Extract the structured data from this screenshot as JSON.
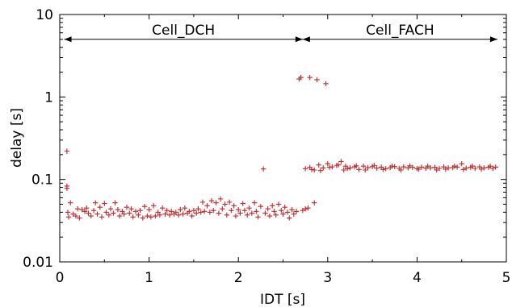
{
  "chart_data": {
    "type": "scatter",
    "title": "",
    "xlabel": "IDT [s]",
    "ylabel": "delay [s]",
    "xlim": [
      0,
      5
    ],
    "ylim": [
      0.01,
      10
    ],
    "yscale": "log",
    "grid": false,
    "legend": "none",
    "marker": "+",
    "color": "#c0282a",
    "x_ticks": [
      0,
      1,
      2,
      3,
      4,
      5
    ],
    "x_tick_labels": [
      "0",
      "1",
      "2",
      "3",
      "4",
      "5"
    ],
    "y_ticks": [
      0.01,
      0.1,
      1,
      10
    ],
    "y_tick_labels": [
      "0.01",
      "0.1",
      "1",
      "10"
    ],
    "annotations": [
      {
        "label": "Cell_DCH",
        "x_from": 0.05,
        "x_to": 2.72,
        "y": 5
      },
      {
        "label": "Cell_FACH",
        "x_from": 2.72,
        "x_to": 4.9,
        "y": 5
      }
    ],
    "series": [
      {
        "points": [
          [
            0.08,
            0.22
          ],
          [
            0.08,
            0.083
          ],
          [
            0.08,
            0.078
          ],
          [
            0.09,
            0.04
          ],
          [
            0.1,
            0.035
          ],
          [
            0.12,
            0.052
          ],
          [
            0.15,
            0.038
          ],
          [
            0.18,
            0.036
          ],
          [
            0.2,
            0.044
          ],
          [
            0.22,
            0.034
          ],
          [
            0.25,
            0.043
          ],
          [
            0.28,
            0.041
          ],
          [
            0.3,
            0.045
          ],
          [
            0.32,
            0.039
          ],
          [
            0.35,
            0.036
          ],
          [
            0.38,
            0.042
          ],
          [
            0.4,
            0.052
          ],
          [
            0.42,
            0.038
          ],
          [
            0.45,
            0.046
          ],
          [
            0.47,
            0.035
          ],
          [
            0.5,
            0.051
          ],
          [
            0.52,
            0.04
          ],
          [
            0.55,
            0.037
          ],
          [
            0.57,
            0.044
          ],
          [
            0.6,
            0.039
          ],
          [
            0.62,
            0.052
          ],
          [
            0.65,
            0.043
          ],
          [
            0.67,
            0.036
          ],
          [
            0.7,
            0.041
          ],
          [
            0.72,
            0.038
          ],
          [
            0.75,
            0.046
          ],
          [
            0.78,
            0.039
          ],
          [
            0.8,
            0.044
          ],
          [
            0.82,
            0.035
          ],
          [
            0.85,
            0.041
          ],
          [
            0.88,
            0.037
          ],
          [
            0.9,
            0.042
          ],
          [
            0.93,
            0.034
          ],
          [
            0.95,
            0.047
          ],
          [
            0.98,
            0.036
          ],
          [
            1.0,
            0.043
          ],
          [
            1.02,
            0.035
          ],
          [
            1.05,
            0.048
          ],
          [
            1.07,
            0.036
          ],
          [
            1.1,
            0.04
          ],
          [
            1.12,
            0.037
          ],
          [
            1.15,
            0.045
          ],
          [
            1.18,
            0.038
          ],
          [
            1.2,
            0.042
          ],
          [
            1.23,
            0.037
          ],
          [
            1.25,
            0.041
          ],
          [
            1.28,
            0.038
          ],
          [
            1.3,
            0.04
          ],
          [
            1.33,
            0.037
          ],
          [
            1.35,
            0.043
          ],
          [
            1.38,
            0.038
          ],
          [
            1.4,
            0.045
          ],
          [
            1.43,
            0.039
          ],
          [
            1.45,
            0.041
          ],
          [
            1.48,
            0.036
          ],
          [
            1.5,
            0.042
          ],
          [
            1.53,
            0.039
          ],
          [
            1.55,
            0.044
          ],
          [
            1.58,
            0.04
          ],
          [
            1.6,
            0.053
          ],
          [
            1.62,
            0.041
          ],
          [
            1.65,
            0.048
          ],
          [
            1.68,
            0.04
          ],
          [
            1.7,
            0.055
          ],
          [
            1.72,
            0.042
          ],
          [
            1.75,
            0.052
          ],
          [
            1.78,
            0.039
          ],
          [
            1.8,
            0.058
          ],
          [
            1.82,
            0.044
          ],
          [
            1.85,
            0.05
          ],
          [
            1.87,
            0.037
          ],
          [
            1.9,
            0.053
          ],
          [
            1.92,
            0.042
          ],
          [
            1.95,
            0.048
          ],
          [
            1.97,
            0.036
          ],
          [
            2.0,
            0.043
          ],
          [
            2.02,
            0.039
          ],
          [
            2.05,
            0.051
          ],
          [
            2.07,
            0.042
          ],
          [
            2.1,
            0.037
          ],
          [
            2.12,
            0.045
          ],
          [
            2.15,
            0.039
          ],
          [
            2.18,
            0.052
          ],
          [
            2.2,
            0.041
          ],
          [
            2.22,
            0.035
          ],
          [
            2.25,
            0.047
          ],
          [
            2.28,
            0.134
          ],
          [
            2.3,
            0.039
          ],
          [
            2.33,
            0.044
          ],
          [
            2.35,
            0.036
          ],
          [
            2.38,
            0.048
          ],
          [
            2.4,
            0.041
          ],
          [
            2.42,
            0.037
          ],
          [
            2.45,
            0.05
          ],
          [
            2.48,
            0.042
          ],
          [
            2.5,
            0.038
          ],
          [
            2.52,
            0.046
          ],
          [
            2.55,
            0.04
          ],
          [
            2.57,
            0.034
          ],
          [
            2.6,
            0.043
          ],
          [
            2.62,
            0.038
          ],
          [
            2.65,
            0.041
          ],
          [
            2.68,
            1.65
          ],
          [
            2.7,
            1.72
          ],
          [
            2.72,
            0.042
          ],
          [
            2.75,
            0.044
          ],
          [
            2.78,
            0.045
          ],
          [
            2.8,
            1.72
          ],
          [
            2.85,
            0.052
          ],
          [
            2.88,
            1.62
          ],
          [
            2.98,
            1.45
          ],
          [
            2.75,
            0.135
          ],
          [
            2.8,
            0.14
          ],
          [
            2.85,
            0.13
          ],
          [
            2.9,
            0.15
          ],
          [
            2.95,
            0.138
          ],
          [
            3.0,
            0.155
          ],
          [
            3.05,
            0.142
          ],
          [
            3.1,
            0.148
          ],
          [
            3.15,
            0.165
          ],
          [
            3.18,
            0.13
          ],
          [
            3.2,
            0.145
          ],
          [
            3.25,
            0.138
          ],
          [
            3.3,
            0.142
          ],
          [
            3.35,
            0.132
          ],
          [
            3.4,
            0.145
          ],
          [
            3.45,
            0.139
          ],
          [
            3.5,
            0.143
          ],
          [
            3.55,
            0.137
          ],
          [
            3.6,
            0.141
          ],
          [
            3.65,
            0.135
          ],
          [
            3.7,
            0.139
          ],
          [
            3.75,
            0.143
          ],
          [
            3.8,
            0.136
          ],
          [
            3.85,
            0.142
          ],
          [
            3.9,
            0.138
          ],
          [
            3.95,
            0.14
          ],
          [
            4.0,
            0.135
          ],
          [
            4.05,
            0.141
          ],
          [
            4.1,
            0.137
          ],
          [
            4.15,
            0.138
          ],
          [
            4.2,
            0.14
          ],
          [
            4.25,
            0.136
          ],
          [
            4.3,
            0.142
          ],
          [
            4.35,
            0.138
          ],
          [
            4.4,
            0.139
          ],
          [
            4.45,
            0.141
          ],
          [
            4.5,
            0.155
          ],
          [
            4.55,
            0.137
          ],
          [
            4.6,
            0.14
          ],
          [
            4.65,
            0.136
          ],
          [
            4.7,
            0.142
          ],
          [
            4.75,
            0.138
          ],
          [
            4.8,
            0.14
          ],
          [
            4.85,
            0.136
          ],
          [
            4.88,
            0.141
          ],
          [
            2.82,
            0.132
          ],
          [
            2.92,
            0.128
          ],
          [
            3.02,
            0.14
          ],
          [
            3.12,
            0.15
          ],
          [
            3.22,
            0.135
          ],
          [
            3.32,
            0.146
          ],
          [
            3.42,
            0.13
          ],
          [
            3.52,
            0.148
          ],
          [
            3.62,
            0.132
          ],
          [
            3.72,
            0.145
          ],
          [
            3.82,
            0.13
          ],
          [
            3.92,
            0.146
          ],
          [
            4.02,
            0.133
          ],
          [
            4.12,
            0.145
          ],
          [
            4.22,
            0.13
          ],
          [
            4.32,
            0.133
          ],
          [
            4.42,
            0.145
          ],
          [
            4.52,
            0.132
          ],
          [
            4.62,
            0.145
          ],
          [
            4.72,
            0.133
          ],
          [
            4.82,
            0.145
          ]
        ]
      }
    ]
  }
}
